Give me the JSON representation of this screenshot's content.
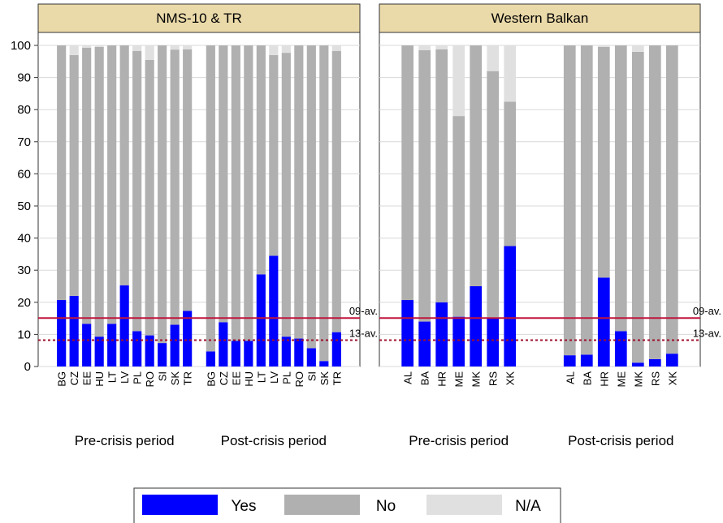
{
  "chart_data": {
    "type": "bar",
    "stacked": true,
    "ylim": [
      0,
      100
    ],
    "yticks": [
      0,
      10,
      20,
      30,
      40,
      50,
      60,
      70,
      80,
      90,
      100
    ],
    "grid": true,
    "series": [
      {
        "name": "Yes",
        "color": "#0000ff"
      },
      {
        "name": "No",
        "color": "#b0b0b0"
      },
      {
        "name": "N/A",
        "color": "#e0e0e0"
      }
    ],
    "reference_lines": [
      {
        "label": "09-av.",
        "value": 15.1,
        "color": "#c0143c",
        "style": "solid"
      },
      {
        "label": "13-av.",
        "value": 8.2,
        "color": "#a0102c",
        "style": "dotted"
      }
    ],
    "panels": [
      {
        "title": "NMS-10 & TR",
        "groups": [
          {
            "name": "Pre-crisis period",
            "categories": [
              "BG",
              "CZ",
              "EE",
              "HU",
              "LT",
              "LV",
              "PL",
              "RO",
              "SI",
              "SK",
              "TR"
            ],
            "values": [
              [
                20.7,
                22,
                13.3,
                9.3,
                13.3,
                25.3,
                11,
                9.7,
                7.3,
                13,
                17.3
              ],
              [
                79.3,
                75,
                86,
                90.2,
                86.7,
                74.7,
                87.3,
                85.8,
                92.7,
                85.7,
                81.5
              ],
              [
                0,
                3,
                0.7,
                0.5,
                0,
                0,
                1.7,
                4.5,
                0,
                1.3,
                1.2
              ]
            ]
          },
          {
            "name": "Post-crisis period",
            "categories": [
              "BG",
              "CZ",
              "EE",
              "HU",
              "LT",
              "LV",
              "PL",
              "RO",
              "SI",
              "SK",
              "TR"
            ],
            "values": [
              [
                4.7,
                13.8,
                8,
                8,
                28.7,
                34.5,
                9.3,
                8.7,
                5.7,
                1.7,
                10.7
              ],
              [
                95.3,
                86.2,
                92,
                92,
                71.3,
                62.5,
                88.4,
                91.3,
                94.3,
                98.3,
                87.6
              ],
              [
                0,
                0,
                0,
                0,
                0,
                3,
                2.3,
                0,
                0,
                0,
                1.7
              ]
            ]
          }
        ]
      },
      {
        "title": "Western Balkan",
        "groups": [
          {
            "name": "Pre-crisis period",
            "categories": [
              "AL",
              "BA",
              "HR",
              "ME",
              "MK",
              "RS",
              "XK"
            ],
            "values": [
              [
                20.7,
                14,
                20,
                15.5,
                25,
                15.3,
                37.5
              ],
              [
                79.3,
                84.5,
                78.8,
                62.5,
                75,
                76.7,
                45
              ],
              [
                0,
                1.5,
                1.2,
                22,
                0,
                8,
                17.5
              ]
            ]
          },
          {
            "name": "Post-crisis period",
            "categories": [
              "AL",
              "BA",
              "HR",
              "ME",
              "MK",
              "RS",
              "XK"
            ],
            "values": [
              [
                3.5,
                3.7,
                27.7,
                11,
                1.2,
                2.3,
                4
              ],
              [
                96.5,
                96.3,
                71.8,
                89,
                96.8,
                97.7,
                96
              ],
              [
                0,
                0,
                0.5,
                0,
                2,
                0,
                0
              ]
            ]
          }
        ]
      }
    ]
  }
}
